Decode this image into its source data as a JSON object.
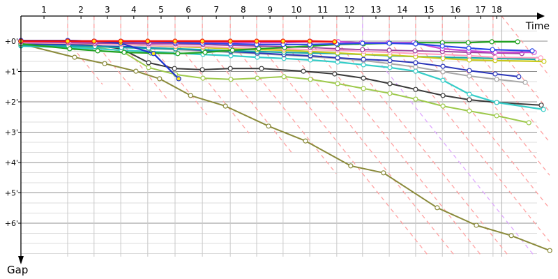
{
  "chart_data": {
    "type": "line",
    "title": "",
    "xlabel": "Time",
    "ylabel": "Gap",
    "grid": {
      "major_color": "#8f8f8f",
      "minor_color": "#dcdcdc",
      "vertical_color": "#c9c9c9",
      "finish_line_color": "#ababab"
    },
    "x_axis": {
      "tick_labels": [
        "1",
        "2",
        "3",
        "4",
        "5",
        "6",
        "7",
        "8",
        "9",
        "10",
        "11",
        "12",
        "13",
        "14",
        "15",
        "16",
        "17",
        "18"
      ],
      "tick_t": [
        0.76,
        1.98,
        2.85,
        3.72,
        4.62,
        5.52,
        6.44,
        7.33,
        8.21,
        9.08,
        9.95,
        10.83,
        11.7,
        12.57,
        13.45,
        14.32,
        15.15,
        15.68
      ]
    },
    "y_axis": {
      "tick_labels": [
        "+0'",
        "+1'",
        "+2'",
        "+3'",
        "+4'",
        "+5'",
        "+6'"
      ],
      "tick_values": [
        0,
        1,
        2,
        3,
        4,
        5,
        6
      ],
      "range_min": 0,
      "range_max": 7.1
    },
    "lap_lines": {
      "comment": "dashed lapping guides: vertical above gap 0 at each leader lap boundary, then diagonal",
      "boundaries_t": [
        1.54,
        2.41,
        3.29,
        4.18,
        5.08,
        5.98,
        6.9,
        7.77,
        8.64,
        9.52,
        10.41,
        11.26,
        12.14,
        13.01,
        13.89,
        14.76,
        15.56
      ],
      "finish_t": 15.84,
      "violet_lap": 12,
      "pink_color": "#ffa2a2",
      "violet_color": "#dfa8ff",
      "slope_gap_per_time": 1.25
    },
    "series": [
      {
        "name": "olive",
        "color": "#8a8a3a",
        "width": 2,
        "marker": "white",
        "points": [
          [
            0,
            0.09
          ],
          [
            1.77,
            0.53
          ],
          [
            2.76,
            0.74
          ],
          [
            3.79,
            0.99
          ],
          [
            4.57,
            1.24
          ],
          [
            5.59,
            1.79
          ],
          [
            6.74,
            2.14
          ],
          [
            8.16,
            2.8
          ],
          [
            9.38,
            3.29
          ],
          [
            10.87,
            4.11
          ],
          [
            11.95,
            4.34
          ],
          [
            13.72,
            5.49
          ],
          [
            15.01,
            6.07
          ],
          [
            16.16,
            6.41
          ],
          [
            17.43,
            6.9
          ]
        ]
      },
      {
        "name": "yellow-green",
        "color": "#9dc94b",
        "width": 2,
        "marker": "white",
        "points": [
          [
            0,
            0.11
          ],
          [
            1.56,
            0.16
          ],
          [
            2.44,
            0.21
          ],
          [
            3.31,
            0.32
          ],
          [
            4.21,
            0.87
          ],
          [
            5.1,
            1.1
          ],
          [
            6.0,
            1.22
          ],
          [
            6.92,
            1.26
          ],
          [
            7.79,
            1.22
          ],
          [
            8.67,
            1.17
          ],
          [
            9.54,
            1.26
          ],
          [
            10.44,
            1.4
          ],
          [
            11.29,
            1.56
          ],
          [
            12.16,
            1.72
          ],
          [
            13.01,
            1.91
          ],
          [
            13.91,
            2.14
          ],
          [
            14.78,
            2.3
          ],
          [
            15.68,
            2.46
          ],
          [
            16.74,
            2.69
          ]
        ]
      },
      {
        "name": "black",
        "color": "#3a3a3a",
        "width": 2,
        "marker": "white",
        "points": [
          [
            0,
            0.07
          ],
          [
            1.56,
            0.09
          ],
          [
            2.44,
            0.14
          ],
          [
            3.31,
            0.25
          ],
          [
            4.21,
            0.71
          ],
          [
            5.06,
            0.9
          ],
          [
            5.98,
            0.94
          ],
          [
            6.9,
            0.9
          ],
          [
            7.93,
            0.9
          ],
          [
            9.31,
            0.99
          ],
          [
            10.34,
            1.08
          ],
          [
            11.29,
            1.22
          ],
          [
            12.16,
            1.4
          ],
          [
            13.01,
            1.59
          ],
          [
            13.91,
            1.79
          ],
          [
            14.78,
            1.93
          ],
          [
            15.68,
            2.02
          ],
          [
            17.15,
            2.11
          ]
        ]
      },
      {
        "name": "turquoise",
        "color": "#35cdc8",
        "width": 2.2,
        "marker": "white",
        "points": [
          [
            0,
            0.16
          ],
          [
            1.56,
            0.21
          ],
          [
            2.44,
            0.25
          ],
          [
            3.31,
            0.3
          ],
          [
            4.21,
            0.34
          ],
          [
            5.1,
            0.39
          ],
          [
            6.0,
            0.44
          ],
          [
            6.92,
            0.48
          ],
          [
            7.79,
            0.53
          ],
          [
            8.67,
            0.57
          ],
          [
            9.54,
            0.62
          ],
          [
            10.44,
            0.69
          ],
          [
            11.29,
            0.78
          ],
          [
            12.16,
            0.87
          ],
          [
            13.01,
            0.99
          ],
          [
            13.91,
            1.29
          ],
          [
            14.78,
            1.75
          ],
          [
            15.68,
            2.02
          ],
          [
            17.22,
            2.25
          ]
        ]
      },
      {
        "name": "gray",
        "color": "#a8a8a8",
        "width": 2,
        "marker": "white",
        "points": [
          [
            0,
            0.11
          ],
          [
            1.56,
            0.14
          ],
          [
            2.44,
            0.16
          ],
          [
            3.31,
            0.21
          ],
          [
            4.21,
            0.25
          ],
          [
            5.1,
            0.28
          ],
          [
            6.0,
            0.32
          ],
          [
            6.92,
            0.37
          ],
          [
            7.79,
            0.41
          ],
          [
            8.67,
            0.46
          ],
          [
            9.54,
            0.51
          ],
          [
            10.44,
            0.57
          ],
          [
            11.29,
            0.64
          ],
          [
            12.16,
            0.74
          ],
          [
            13.01,
            0.85
          ],
          [
            13.91,
            1.01
          ],
          [
            14.78,
            1.15
          ],
          [
            15.68,
            1.26
          ],
          [
            16.62,
            1.36
          ]
        ]
      },
      {
        "name": "navy",
        "color": "#2a35b8",
        "width": 2,
        "marker": "white",
        "points": [
          [
            0,
            0.09
          ],
          [
            1.56,
            0.11
          ],
          [
            2.44,
            0.16
          ],
          [
            3.31,
            0.18
          ],
          [
            4.21,
            0.21
          ],
          [
            5.1,
            0.25
          ],
          [
            6.0,
            0.3
          ],
          [
            6.92,
            0.34
          ],
          [
            7.79,
            0.39
          ],
          [
            8.67,
            0.44
          ],
          [
            9.54,
            0.48
          ],
          [
            10.44,
            0.55
          ],
          [
            11.29,
            0.6
          ],
          [
            12.16,
            0.64
          ],
          [
            13.01,
            0.71
          ],
          [
            13.91,
            0.83
          ],
          [
            14.78,
            0.97
          ],
          [
            15.63,
            1.08
          ],
          [
            16.41,
            1.17
          ]
        ]
      },
      {
        "name": "teal",
        "color": "#17a7a7",
        "width": 2.2,
        "marker": "white",
        "points": [
          [
            0,
            0.14
          ],
          [
            1.56,
            0.16
          ],
          [
            2.44,
            0.18
          ],
          [
            3.31,
            0.21
          ],
          [
            4.21,
            0.23
          ],
          [
            5.1,
            0.25
          ],
          [
            6.0,
            0.28
          ],
          [
            6.92,
            0.32
          ],
          [
            7.79,
            0.34
          ],
          [
            8.67,
            0.37
          ],
          [
            9.54,
            0.39
          ],
          [
            10.44,
            0.41
          ],
          [
            11.29,
            0.44
          ],
          [
            12.16,
            0.48
          ],
          [
            13.01,
            0.51
          ],
          [
            13.91,
            0.53
          ],
          [
            14.78,
            0.55
          ],
          [
            15.63,
            0.57
          ],
          [
            17.01,
            0.6
          ]
        ]
      },
      {
        "name": "yellow",
        "color": "#c9c91a",
        "width": 2.2,
        "marker": "white",
        "points": [
          [
            0,
            0.05
          ],
          [
            1.56,
            0.07
          ],
          [
            2.44,
            0.09
          ],
          [
            3.31,
            0.11
          ],
          [
            4.21,
            0.14
          ],
          [
            5.1,
            0.18
          ],
          [
            6.0,
            0.21
          ],
          [
            6.92,
            0.25
          ],
          [
            7.79,
            0.28
          ],
          [
            8.67,
            0.3
          ],
          [
            9.54,
            0.34
          ],
          [
            10.44,
            0.39
          ],
          [
            11.29,
            0.44
          ],
          [
            12.16,
            0.46
          ],
          [
            13.01,
            0.51
          ],
          [
            13.91,
            0.57
          ],
          [
            14.78,
            0.62
          ],
          [
            15.63,
            0.64
          ],
          [
            17.24,
            0.67
          ]
        ]
      },
      {
        "name": "pink",
        "color": "#ff9ec0",
        "width": 2,
        "marker": "white",
        "points": [
          [
            0,
            0.05
          ],
          [
            1.56,
            0.07
          ],
          [
            2.44,
            0.09
          ],
          [
            3.31,
            0.11
          ],
          [
            4.21,
            0.14
          ],
          [
            5.1,
            0.16
          ],
          [
            6.0,
            0.18
          ],
          [
            6.92,
            0.21
          ],
          [
            7.79,
            0.23
          ],
          [
            8.67,
            0.25
          ],
          [
            9.54,
            0.28
          ],
          [
            10.44,
            0.3
          ],
          [
            11.29,
            0.34
          ],
          [
            12.16,
            0.37
          ],
          [
            13.01,
            0.41
          ],
          [
            13.91,
            0.44
          ],
          [
            14.78,
            0.48
          ],
          [
            15.63,
            0.53
          ],
          [
            17.13,
            0.55
          ]
        ]
      },
      {
        "name": "purple",
        "color": "#9a3d9a",
        "width": 1.8,
        "marker": "white",
        "points": [
          [
            0,
            0.02
          ],
          [
            1.56,
            0.05
          ],
          [
            2.44,
            0.07
          ],
          [
            3.31,
            0.07
          ],
          [
            4.21,
            0.09
          ],
          [
            5.1,
            0.09
          ],
          [
            6.0,
            0.11
          ],
          [
            6.92,
            0.14
          ],
          [
            7.79,
            0.16
          ],
          [
            8.67,
            0.18
          ],
          [
            9.54,
            0.21
          ],
          [
            10.44,
            0.25
          ],
          [
            11.26,
            0.28
          ],
          [
            12.14,
            0.3
          ],
          [
            12.99,
            0.32
          ],
          [
            13.89,
            0.34
          ],
          [
            14.76,
            0.37
          ],
          [
            15.59,
            0.39
          ],
          [
            16.51,
            0.41
          ]
        ]
      },
      {
        "name": "green",
        "color": "#21a121",
        "width": 2.2,
        "marker": "white",
        "points": [
          [
            0,
            0.09
          ],
          [
            1.61,
            0.25
          ],
          [
            2.53,
            0.32
          ],
          [
            3.4,
            0.37
          ],
          [
            4.28,
            0.39
          ],
          [
            5.17,
            0.41
          ],
          [
            6.07,
            0.37
          ],
          [
            6.97,
            0.3
          ],
          [
            7.84,
            0.25
          ],
          [
            8.69,
            0.21
          ],
          [
            9.56,
            0.16
          ],
          [
            10.44,
            0.11
          ],
          [
            11.29,
            0.09
          ],
          [
            12.16,
            0.07
          ],
          [
            13.01,
            0.05
          ],
          [
            13.89,
            0.05
          ],
          [
            14.74,
            0.05
          ],
          [
            15.52,
            0.02
          ],
          [
            16.37,
            0.02
          ]
        ]
      },
      {
        "name": "magenta",
        "color": "#cb4ad6",
        "width": 2.2,
        "marker": "white",
        "points": [
          [
            0,
            0.02
          ],
          [
            1.59,
            0.02
          ],
          [
            2.46,
            0.02
          ],
          [
            3.33,
            0.02
          ],
          [
            4.23,
            0.05
          ],
          [
            5.13,
            0.05
          ],
          [
            6.02,
            0.05
          ],
          [
            6.94,
            0.05
          ],
          [
            7.82,
            0.05
          ],
          [
            8.69,
            0.05
          ],
          [
            9.56,
            0.02
          ],
          [
            10.46,
            0.02
          ],
          [
            11.22,
            0.05
          ],
          [
            12.11,
            0.05
          ],
          [
            12.94,
            0.05
          ],
          [
            13.89,
            0.25
          ],
          [
            14.76,
            0.32
          ],
          [
            15.63,
            0.37
          ],
          [
            16.92,
            0.37
          ]
        ]
      },
      {
        "name": "blue",
        "color": "#2a46e8",
        "width": 2.2,
        "marker": "white",
        "points": [
          [
            0,
            -0.02
          ],
          [
            1.54,
            -0.02
          ],
          [
            2.41,
            0
          ],
          [
            3.29,
            0.02
          ],
          [
            4.18,
            0.02
          ],
          [
            5.08,
            0.05
          ],
          [
            5.98,
            0.07
          ],
          [
            6.9,
            0.09
          ],
          [
            7.77,
            0.11
          ],
          [
            8.64,
            0.11
          ],
          [
            9.52,
            0.11
          ],
          [
            10.41,
            0.09
          ],
          [
            11.26,
            0.07
          ],
          [
            12.14,
            0.07
          ],
          [
            13.01,
            0.09
          ],
          [
            13.89,
            0.16
          ],
          [
            14.76,
            0.23
          ],
          [
            15.54,
            0.28
          ],
          [
            16.85,
            0.32
          ]
        ]
      },
      {
        "name": "blue-dnf",
        "color": "#1d33cf",
        "width": 2.2,
        "marker": "yellow",
        "points": [
          [
            0,
            -0.02
          ],
          [
            1.54,
            -0.02
          ],
          [
            2.41,
            0
          ],
          [
            3.29,
            0.07
          ],
          [
            4.37,
            0.41
          ],
          [
            5.2,
            1.24
          ]
        ]
      },
      {
        "name": "red-leader",
        "color": "#ef1515",
        "width": 2.8,
        "marker": "yellow",
        "points": [
          [
            0,
            0
          ],
          [
            1.54,
            0
          ],
          [
            2.41,
            0
          ],
          [
            3.29,
            0
          ],
          [
            4.18,
            0
          ],
          [
            5.08,
            0
          ],
          [
            5.98,
            0
          ],
          [
            6.9,
            0
          ],
          [
            7.77,
            0
          ],
          [
            8.64,
            0
          ],
          [
            9.52,
            0
          ],
          [
            10.34,
            0.02
          ]
        ]
      }
    ],
    "marker_style": {
      "white_fill": "#ffffff",
      "yellow_fill": "#ffe819"
    }
  }
}
